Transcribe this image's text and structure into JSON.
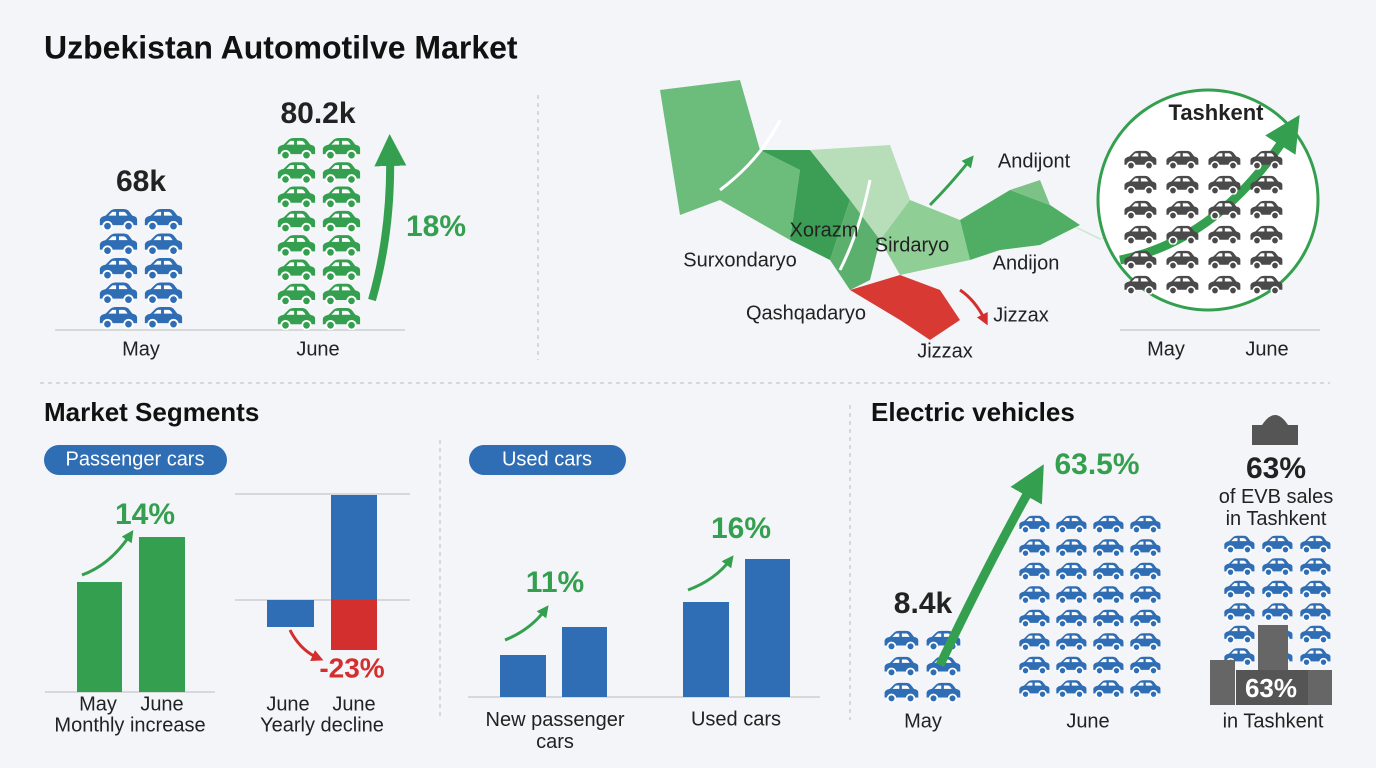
{
  "header": {
    "title": "Uzbekistan Automotilve Market"
  },
  "sales": {
    "categories": [
      "May",
      "June"
    ],
    "value_labels": [
      "68k",
      "80.2k"
    ],
    "growth": "18%"
  },
  "map": {
    "regions": [
      "Xorazm",
      "Surxondaryo",
      "Qashqadaryo",
      "Sirdaryo",
      "Andijont",
      "Andijon",
      "Jizzax",
      "Jizzax"
    ],
    "inset_title": "Tashkent",
    "categories": [
      "May",
      "June"
    ]
  },
  "segments": {
    "title": "Market Segments",
    "passenger": {
      "tag": "Passenger cars",
      "monthly": {
        "categories": [
          "May",
          "June"
        ],
        "values": [
          110,
          155
        ],
        "color": "#34a04f",
        "change": "14%",
        "caption": "Monthly increase"
      },
      "yearly": {
        "categories": [
          "June",
          "June"
        ],
        "series": [
          {
            "color": "#2f6db5",
            "values": [
              -27,
              105
            ]
          },
          {
            "color": "#d32f2f",
            "values": [
              null,
              -50
            ]
          }
        ],
        "change": "-23%",
        "caption": "Yearly decline"
      }
    },
    "used": {
      "tag": "Used cars",
      "color": "#2f6db5",
      "groups": [
        {
          "label": "New passenger cars",
          "values": [
            42,
            70
          ],
          "change": "11%"
        },
        {
          "label": "Used cars",
          "values": [
            95,
            138
          ],
          "change": "16%"
        }
      ]
    }
  },
  "ev": {
    "title": "Electric vehicles",
    "categories": [
      "May",
      "June"
    ],
    "may_value": "8.4k",
    "growth": "63.5%",
    "share": "63%",
    "share_caption": "of EVB sales in Tashkent",
    "badge": "63%",
    "badge_caption": "in Tashkent"
  }
}
